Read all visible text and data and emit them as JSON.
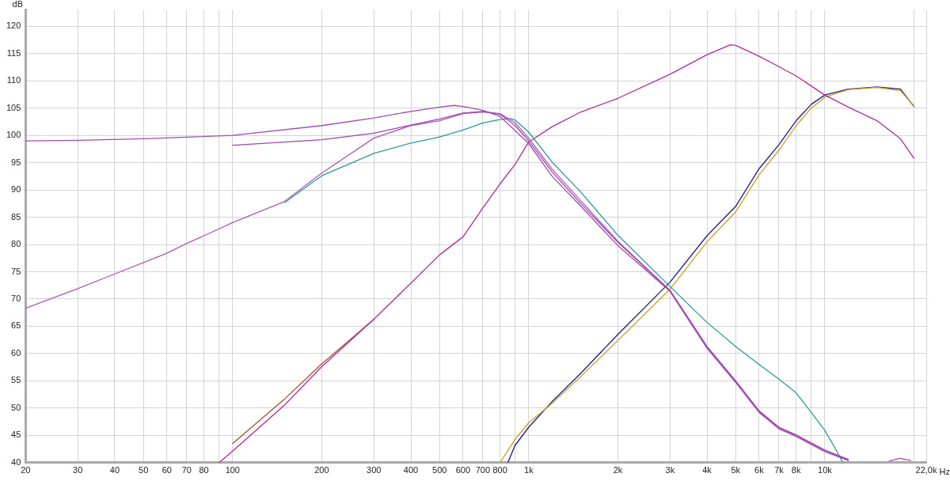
{
  "chart_data": {
    "type": "line",
    "xlabel": "Hz",
    "ylabel": "dB",
    "log": "x",
    "grid": true,
    "legend": false,
    "marker": "none",
    "line_style": "solid",
    "xlim": [
      20,
      22000
    ],
    "ylim": [
      40,
      123
    ],
    "xticks": [
      20,
      30,
      40,
      50,
      60,
      70,
      80,
      {
        "value": 90,
        "label": null
      },
      100,
      200,
      300,
      400,
      500,
      600,
      700,
      800,
      {
        "value": 900,
        "label": null
      },
      {
        "value": 1000,
        "label": "1k"
      },
      {
        "value": 2000,
        "label": "2k"
      },
      {
        "value": 3000,
        "label": "3k"
      },
      {
        "value": 4000,
        "label": "4k"
      },
      {
        "value": 5000,
        "label": "5k"
      },
      {
        "value": 6000,
        "label": "6k"
      },
      {
        "value": 7000,
        "label": "7k"
      },
      {
        "value": 8000,
        "label": "8k"
      },
      {
        "value": 9000,
        "label": null
      },
      {
        "value": 10000,
        "label": "10k"
      },
      {
        "value": 20000,
        "label": null
      },
      {
        "value": 22000,
        "label": "22,0k"
      }
    ],
    "yticks": [
      40,
      45,
      50,
      55,
      60,
      65,
      70,
      75,
      80,
      85,
      90,
      95,
      100,
      105,
      110,
      115,
      120
    ],
    "series": [
      {
        "color": "#a04cb4",
        "x": [
          20,
          30,
          50,
          100,
          200,
          300,
          400,
          500,
          560,
          600,
          700,
          800,
          1000,
          1200,
          1500,
          2000,
          3000,
          4000,
          5000,
          6000,
          7000,
          8000,
          10000,
          12000,
          13000,
          16500,
          18000,
          19500
        ],
        "values": [
          99.0,
          99.1,
          99.4,
          100.0,
          101.8,
          103.2,
          104.4,
          105.2,
          105.5,
          105.3,
          104.6,
          103.5,
          98.5,
          92.5,
          87.0,
          79.8,
          71.4,
          61.0,
          54.7,
          49.2,
          46.2,
          44.8,
          42.0,
          40.4,
          null,
          40.3,
          40.8,
          40.4
        ]
      },
      {
        "color": "#9c48b0",
        "x": [
          100,
          200,
          300,
          400,
          500,
          600,
          700,
          800,
          900,
          1000,
          1200,
          1500,
          2000,
          3000,
          4000,
          5000,
          6000,
          7000,
          8000,
          10000,
          12000
        ],
        "values": [
          98.2,
          99.2,
          100.4,
          101.9,
          103.0,
          104.1,
          104.4,
          103.9,
          101.8,
          99.0,
          93.3,
          87.5,
          80.4,
          71.5,
          61.2,
          54.9,
          49.4,
          46.4,
          45.0,
          42.2,
          40.5
        ]
      },
      {
        "color": "#b058b8",
        "x": [
          20,
          30,
          40,
          50,
          60,
          70,
          80,
          100,
          150,
          200,
          300,
          400,
          500,
          600,
          700,
          800,
          900,
          1000,
          1200,
          1500,
          2000,
          3000,
          4000,
          5000,
          6000,
          7000,
          8000,
          10000,
          12000
        ],
        "values": [
          68.3,
          71.9,
          74.6,
          76.7,
          78.4,
          80.2,
          81.6,
          84.0,
          87.9,
          93.1,
          99.5,
          101.8,
          102.7,
          104.0,
          104.3,
          104.0,
          102.3,
          99.5,
          93.8,
          88.0,
          80.6,
          71.6,
          61.3,
          55.0,
          49.5,
          46.5,
          45.1,
          42.3,
          40.6
        ]
      },
      {
        "color": "#2a9a9c",
        "x": [
          150,
          200,
          300,
          400,
          500,
          600,
          700,
          800,
          870,
          900,
          1000,
          1200,
          1500,
          2000,
          3000,
          4000,
          5000,
          6000,
          7000,
          8000,
          9000,
          10000,
          11000,
          11500
        ],
        "values": [
          87.7,
          92.6,
          96.7,
          98.6,
          99.7,
          101.0,
          102.3,
          102.9,
          103.1,
          102.8,
          100.6,
          95.1,
          89.6,
          81.7,
          72.3,
          65.7,
          61.3,
          58.0,
          55.3,
          52.8,
          49.2,
          45.9,
          42.0,
          40.0
        ]
      },
      {
        "color": "#b02c9c",
        "x": [
          90,
          100,
          150,
          200,
          300,
          400,
          500,
          600,
          700,
          800,
          900,
          1000,
          1200,
          1500,
          2000,
          3000,
          4000,
          4800,
          5000,
          6000,
          7000,
          8000,
          10000,
          12000,
          15000,
          18000,
          20000
        ],
        "values": [
          40.0,
          42.1,
          50.6,
          57.6,
          66.3,
          72.9,
          78.1,
          81.4,
          86.7,
          91.1,
          94.7,
          98.8,
          101.6,
          104.3,
          106.8,
          111.2,
          114.8,
          116.6,
          116.5,
          114.5,
          112.6,
          110.9,
          107.4,
          105.2,
          102.7,
          99.4,
          95.8
        ]
      },
      {
        "color": "#a0522d",
        "x": [
          100,
          150,
          200,
          250,
          300
        ],
        "values": [
          43.5,
          51.7,
          58.1,
          62.6,
          66.3
        ]
      },
      {
        "color": "#c8a020",
        "x": [
          800,
          900,
          1000,
          1200,
          1500,
          2000,
          3000,
          4000,
          5000,
          6000,
          7000,
          8000,
          9000,
          10000,
          12000,
          15000,
          18000,
          20000
        ],
        "values": [
          40.0,
          44.3,
          47.3,
          50.9,
          55.8,
          62.4,
          71.8,
          80.5,
          86.0,
          92.8,
          97.3,
          101.8,
          105.0,
          107.0,
          108.4,
          108.8,
          108.2,
          105.4
        ]
      },
      {
        "color": "#1c1c8c",
        "x": [
          850,
          900,
          1000,
          1200,
          1500,
          2000,
          3000,
          4000,
          5000,
          6000,
          7000,
          8000,
          9000,
          10000,
          12000,
          15000,
          18000,
          20000
        ],
        "values": [
          40.0,
          43.2,
          46.5,
          51.2,
          56.4,
          63.5,
          73.1,
          81.6,
          87.0,
          93.9,
          98.3,
          102.7,
          105.7,
          107.4,
          108.5,
          108.9,
          108.5,
          105.3
        ]
      }
    ]
  }
}
